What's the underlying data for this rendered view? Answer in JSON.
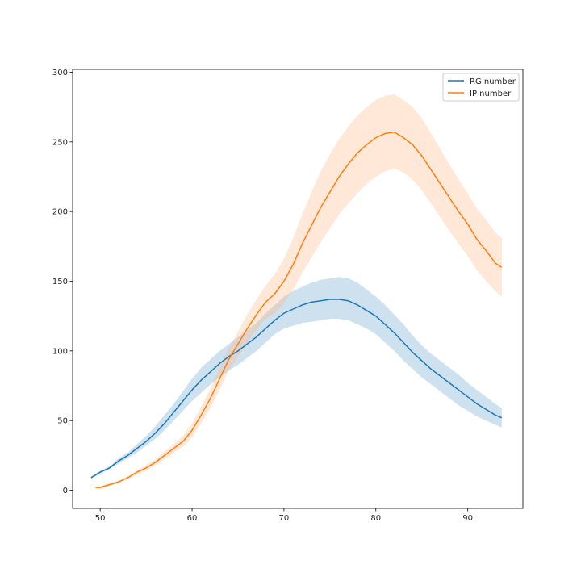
{
  "chart_data": {
    "type": "line",
    "title": "",
    "xlabel": "",
    "ylabel": "",
    "xlim": [
      47,
      96
    ],
    "ylim": [
      -13,
      302
    ],
    "xticks": [
      50,
      60,
      70,
      80,
      90
    ],
    "yticks": [
      0,
      50,
      100,
      150,
      200,
      250,
      300
    ],
    "grid": false,
    "legend_position": "top-right",
    "series": [
      {
        "name": "RG number",
        "color": "#1f77b4",
        "band_color": "#1f77b4",
        "points": [
          [
            49,
            9
          ],
          [
            50,
            13
          ],
          [
            51,
            16
          ],
          [
            52,
            21
          ],
          [
            53,
            25
          ],
          [
            54,
            30
          ],
          [
            55,
            35
          ],
          [
            56,
            41
          ],
          [
            57,
            48
          ],
          [
            58,
            56
          ],
          [
            59,
            64
          ],
          [
            60,
            72
          ],
          [
            61,
            79
          ],
          [
            62,
            85
          ],
          [
            63,
            91
          ],
          [
            64,
            96
          ],
          [
            65,
            100
          ],
          [
            66,
            105
          ],
          [
            67,
            110
          ],
          [
            68,
            116
          ],
          [
            69,
            122
          ],
          [
            70,
            127
          ],
          [
            71,
            130
          ],
          [
            72,
            133
          ],
          [
            73,
            135
          ],
          [
            74,
            136
          ],
          [
            75,
            137
          ],
          [
            76,
            137
          ],
          [
            77,
            136
          ],
          [
            78,
            133
          ],
          [
            79,
            129
          ],
          [
            80,
            125
          ],
          [
            81,
            119
          ],
          [
            82,
            113
          ],
          [
            83,
            106
          ],
          [
            84,
            99
          ],
          [
            85,
            93
          ],
          [
            86,
            87
          ],
          [
            87,
            82
          ],
          [
            88,
            77
          ],
          [
            89,
            72
          ],
          [
            90,
            67
          ],
          [
            91,
            62
          ],
          [
            92,
            58
          ],
          [
            93,
            54
          ],
          [
            93.7,
            52
          ]
        ],
        "lower": [
          [
            49,
            8
          ],
          [
            50,
            12
          ],
          [
            51,
            15
          ],
          [
            52,
            19
          ],
          [
            53,
            23
          ],
          [
            54,
            27
          ],
          [
            55,
            32
          ],
          [
            56,
            37
          ],
          [
            57,
            43
          ],
          [
            58,
            50
          ],
          [
            59,
            57
          ],
          [
            60,
            64
          ],
          [
            61,
            70
          ],
          [
            62,
            76
          ],
          [
            63,
            81
          ],
          [
            64,
            86
          ],
          [
            65,
            90
          ],
          [
            66,
            95
          ],
          [
            67,
            100
          ],
          [
            68,
            106
          ],
          [
            69,
            112
          ],
          [
            70,
            116
          ],
          [
            71,
            118
          ],
          [
            72,
            120
          ],
          [
            73,
            121
          ],
          [
            74,
            122
          ],
          [
            75,
            123
          ],
          [
            76,
            123
          ],
          [
            77,
            122
          ],
          [
            78,
            119
          ],
          [
            79,
            116
          ],
          [
            80,
            112
          ],
          [
            81,
            106
          ],
          [
            82,
            100
          ],
          [
            83,
            93
          ],
          [
            84,
            87
          ],
          [
            85,
            81
          ],
          [
            86,
            76
          ],
          [
            87,
            71
          ],
          [
            88,
            66
          ],
          [
            89,
            61
          ],
          [
            90,
            57
          ],
          [
            91,
            53
          ],
          [
            92,
            50
          ],
          [
            93,
            47
          ],
          [
            93.7,
            45
          ]
        ],
        "upper": [
          [
            49,
            10
          ],
          [
            50,
            14
          ],
          [
            51,
            17
          ],
          [
            52,
            23
          ],
          [
            53,
            27
          ],
          [
            54,
            33
          ],
          [
            55,
            39
          ],
          [
            56,
            46
          ],
          [
            57,
            54
          ],
          [
            58,
            62
          ],
          [
            59,
            71
          ],
          [
            60,
            80
          ],
          [
            61,
            88
          ],
          [
            62,
            94
          ],
          [
            63,
            100
          ],
          [
            64,
            105
          ],
          [
            65,
            110
          ],
          [
            66,
            115
          ],
          [
            67,
            120
          ],
          [
            68,
            127
          ],
          [
            69,
            133
          ],
          [
            70,
            139
          ],
          [
            71,
            143
          ],
          [
            72,
            146
          ],
          [
            73,
            149
          ],
          [
            74,
            151
          ],
          [
            75,
            152
          ],
          [
            76,
            153
          ],
          [
            77,
            152
          ],
          [
            78,
            149
          ],
          [
            79,
            144
          ],
          [
            80,
            139
          ],
          [
            81,
            133
          ],
          [
            82,
            126
          ],
          [
            83,
            119
          ],
          [
            84,
            111
          ],
          [
            85,
            104
          ],
          [
            86,
            98
          ],
          [
            87,
            93
          ],
          [
            88,
            88
          ],
          [
            89,
            83
          ],
          [
            90,
            77
          ],
          [
            91,
            72
          ],
          [
            92,
            67
          ],
          [
            93,
            62
          ],
          [
            93.7,
            59
          ]
        ]
      },
      {
        "name": "IP number",
        "color": "#ff7f0e",
        "band_color": "#ffb27a",
        "points": [
          [
            49.5,
            2
          ],
          [
            50,
            2
          ],
          [
            51,
            4
          ],
          [
            52,
            6
          ],
          [
            53,
            9
          ],
          [
            54,
            13
          ],
          [
            55,
            16
          ],
          [
            56,
            20
          ],
          [
            57,
            25
          ],
          [
            58,
            30
          ],
          [
            59,
            35
          ],
          [
            60,
            43
          ],
          [
            61,
            54
          ],
          [
            62,
            66
          ],
          [
            63,
            80
          ],
          [
            64,
            94
          ],
          [
            65,
            105
          ],
          [
            66,
            116
          ],
          [
            67,
            126
          ],
          [
            68,
            135
          ],
          [
            69,
            141
          ],
          [
            70,
            150
          ],
          [
            71,
            162
          ],
          [
            72,
            177
          ],
          [
            73,
            190
          ],
          [
            74,
            203
          ],
          [
            75,
            214
          ],
          [
            76,
            225
          ],
          [
            77,
            234
          ],
          [
            78,
            242
          ],
          [
            79,
            248
          ],
          [
            80,
            253
          ],
          [
            81,
            256
          ],
          [
            82,
            257
          ],
          [
            83,
            253
          ],
          [
            84,
            248
          ],
          [
            85,
            240
          ],
          [
            86,
            230
          ],
          [
            87,
            220
          ],
          [
            88,
            210
          ],
          [
            89,
            200
          ],
          [
            90,
            191
          ],
          [
            91,
            180
          ],
          [
            92,
            172
          ],
          [
            93,
            163
          ],
          [
            93.7,
            160
          ]
        ],
        "lower": [
          [
            49.5,
            1
          ],
          [
            50,
            1
          ],
          [
            51,
            3
          ],
          [
            52,
            5
          ],
          [
            53,
            8
          ],
          [
            54,
            11
          ],
          [
            55,
            14
          ],
          [
            56,
            18
          ],
          [
            57,
            22
          ],
          [
            58,
            27
          ],
          [
            59,
            31
          ],
          [
            60,
            38
          ],
          [
            61,
            48
          ],
          [
            62,
            59
          ],
          [
            63,
            72
          ],
          [
            64,
            86
          ],
          [
            65,
            96
          ],
          [
            66,
            106
          ],
          [
            67,
            115
          ],
          [
            68,
            123
          ],
          [
            69,
            127
          ],
          [
            70,
            134
          ],
          [
            71,
            144
          ],
          [
            72,
            156
          ],
          [
            73,
            167
          ],
          [
            74,
            178
          ],
          [
            75,
            188
          ],
          [
            76,
            198
          ],
          [
            77,
            206
          ],
          [
            78,
            213
          ],
          [
            79,
            220
          ],
          [
            80,
            225
          ],
          [
            81,
            229
          ],
          [
            82,
            231
          ],
          [
            83,
            228
          ],
          [
            84,
            223
          ],
          [
            85,
            215
          ],
          [
            86,
            206
          ],
          [
            87,
            196
          ],
          [
            88,
            186
          ],
          [
            89,
            177
          ],
          [
            90,
            168
          ],
          [
            91,
            158
          ],
          [
            92,
            150
          ],
          [
            93,
            143
          ],
          [
            93.7,
            139
          ]
        ],
        "upper": [
          [
            49.5,
            2
          ],
          [
            50,
            3
          ],
          [
            51,
            5
          ],
          [
            52,
            7
          ],
          [
            53,
            10
          ],
          [
            54,
            14
          ],
          [
            55,
            18
          ],
          [
            56,
            22
          ],
          [
            57,
            28
          ],
          [
            58,
            33
          ],
          [
            59,
            39
          ],
          [
            60,
            48
          ],
          [
            61,
            60
          ],
          [
            62,
            73
          ],
          [
            63,
            88
          ],
          [
            64,
            102
          ],
          [
            65,
            114
          ],
          [
            66,
            126
          ],
          [
            67,
            137
          ],
          [
            68,
            147
          ],
          [
            69,
            155
          ],
          [
            70,
            166
          ],
          [
            71,
            181
          ],
          [
            72,
            198
          ],
          [
            73,
            214
          ],
          [
            74,
            229
          ],
          [
            75,
            241
          ],
          [
            76,
            252
          ],
          [
            77,
            261
          ],
          [
            78,
            269
          ],
          [
            79,
            275
          ],
          [
            80,
            280
          ],
          [
            81,
            283
          ],
          [
            82,
            284
          ],
          [
            83,
            280
          ],
          [
            84,
            275
          ],
          [
            85,
            267
          ],
          [
            86,
            256
          ],
          [
            87,
            245
          ],
          [
            88,
            234
          ],
          [
            89,
            223
          ],
          [
            90,
            213
          ],
          [
            91,
            202
          ],
          [
            92,
            194
          ],
          [
            93,
            185
          ],
          [
            93.7,
            181
          ]
        ]
      }
    ]
  }
}
